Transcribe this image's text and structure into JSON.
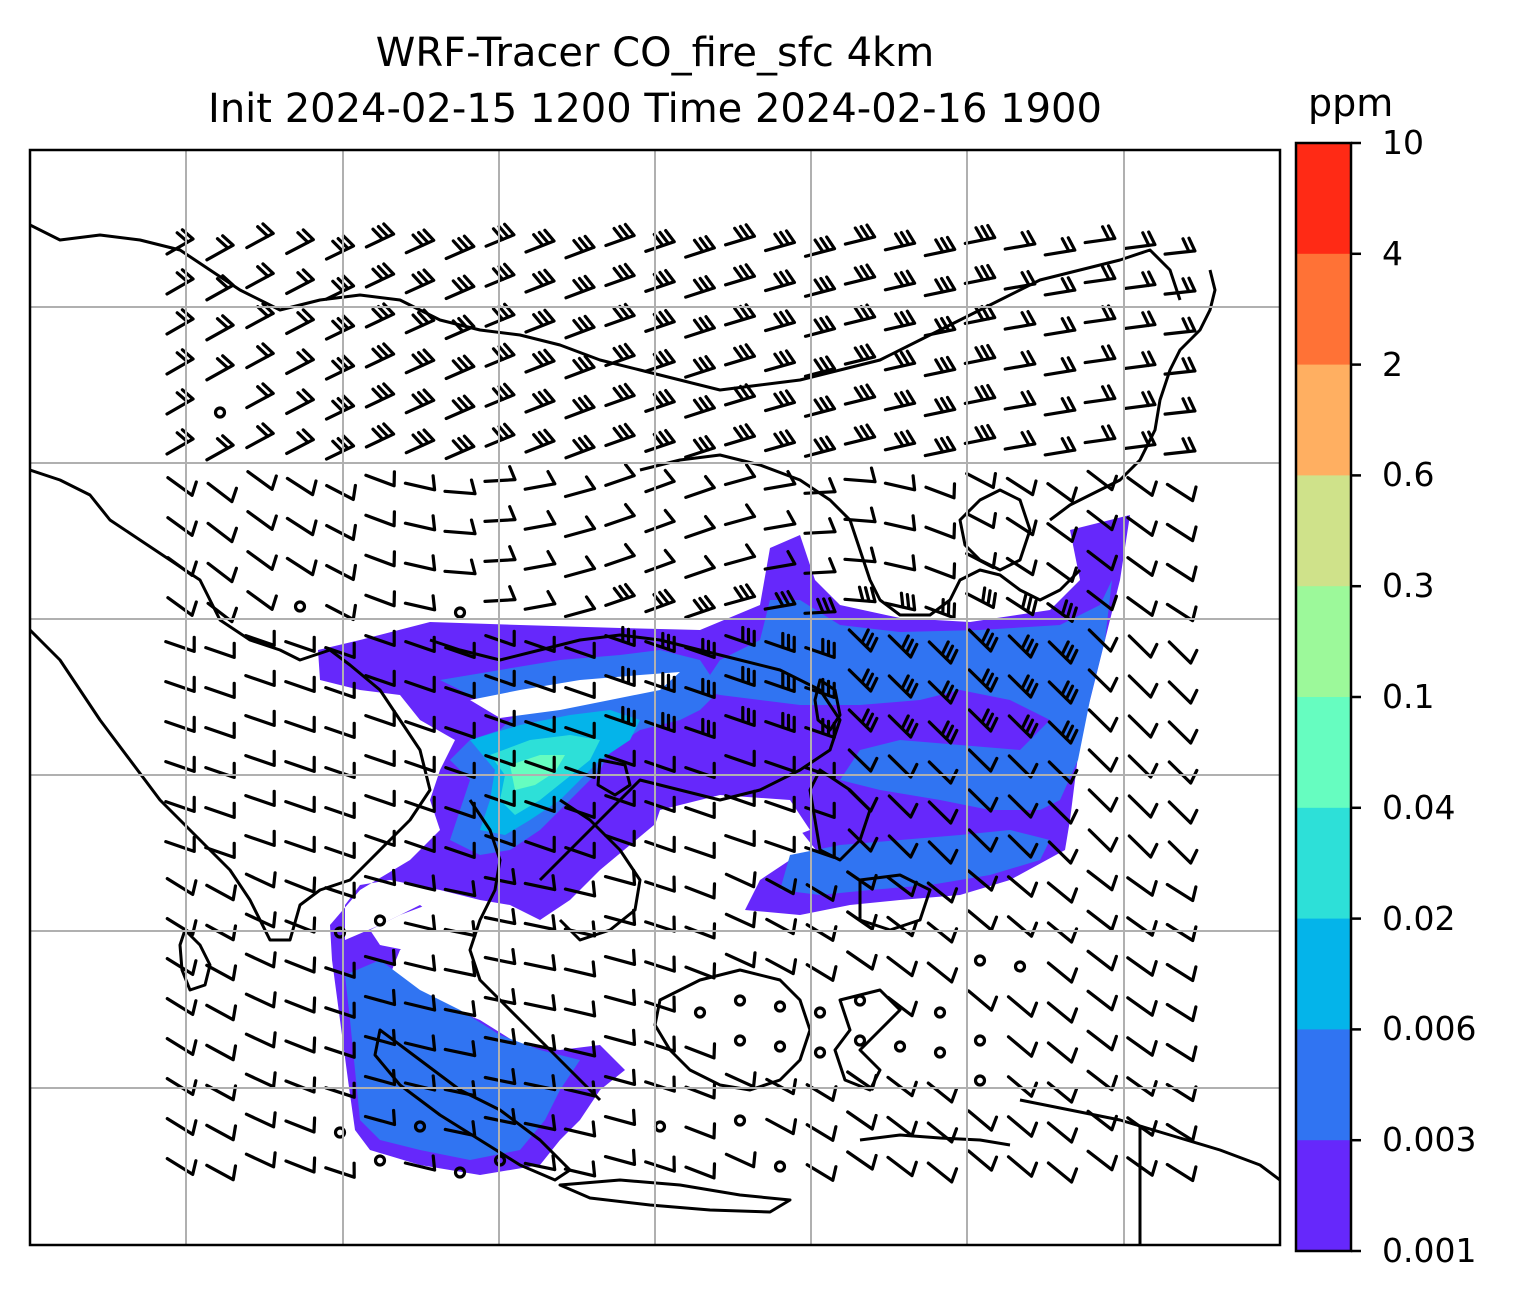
{
  "title": {
    "line1": "WRF-Tracer CO_fire_sfc 4km",
    "line2": "Init 2024-02-15 1200 Time 2024-02-16 1900"
  },
  "colorbar": {
    "unit": "ppm",
    "ticks": [
      "10",
      "4",
      "2",
      "0.6",
      "0.3",
      "0.1",
      "0.04",
      "0.02",
      "0.006",
      "0.003",
      "0.001"
    ],
    "colors_top_to_bottom": [
      "#ff2a15",
      "#ff7236",
      "#ffaf61",
      "#cfe28a",
      "#9cf99a",
      "#66fdc0",
      "#2de0d8",
      "#04b4ea",
      "#3074f2",
      "#6628fb"
    ]
  },
  "map": {
    "plume_colors": {
      "level_0_001": "#6628fb",
      "level_0_003": "#3074f2",
      "level_0_006": "#04b4ea",
      "level_0_02": "#2de0d8",
      "level_0_04": "#66fdc0"
    },
    "gridline_color": "#b0b0b0",
    "coastline_color": "#000000",
    "wind_symbol": "wind-barb"
  }
}
